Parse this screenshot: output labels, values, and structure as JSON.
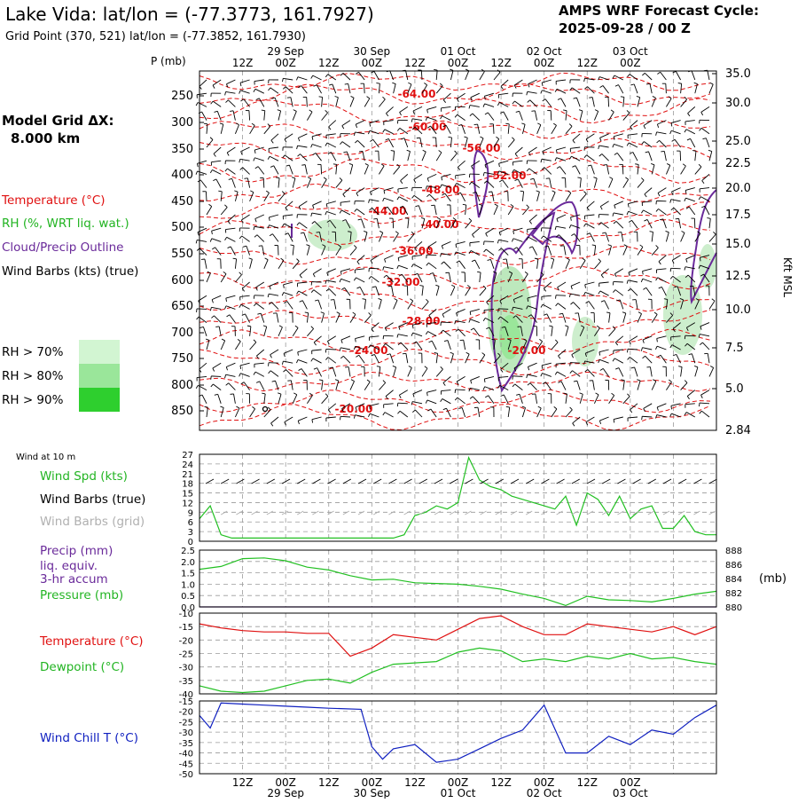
{
  "header": {
    "title": "Lake Vida:  lat/lon = (-77.3773, 161.7927)",
    "grid_point": "Grid Point (370, 521) lat/lon = (-77.3852, 161.7930)",
    "forecast_line1": "AMPS WRF Forecast Cycle:",
    "forecast_line2": "2025-09-28 / 00  Z"
  },
  "sidebar": {
    "model_grid_label": "Model Grid ΔX:",
    "model_grid_value": "8.000 km",
    "legend": [
      {
        "text": "Temperature (°C)",
        "color": "#e01010"
      },
      {
        "text": "RH (%, WRT liq. wat.)",
        "color": "#22b422"
      },
      {
        "text": "Cloud/Precip Outline",
        "color": "#6a2a9a"
      },
      {
        "text": "Wind Barbs (kts) (true)",
        "color": "#000000"
      }
    ],
    "rh_legend": [
      {
        "text": "RH > 70%",
        "color": "#d2f5d2"
      },
      {
        "text": "RH > 80%",
        "color": "#9ae69a"
      },
      {
        "text": "RH > 90%",
        "color": "#2ecf2e"
      }
    ]
  },
  "time_axis": {
    "hour_labels": [
      "12Z",
      "00Z",
      "12Z",
      "00Z",
      "12Z",
      "00Z",
      "12Z",
      "00Z",
      "12Z",
      "00Z"
    ],
    "top_date_labels": [
      "29 Sep",
      "30 Sep",
      "01 Oct",
      "02 Oct",
      "03 Oct"
    ],
    "bottom_date_labels": [
      "29 Sep",
      "30 Sep",
      "01 Oct",
      "02 Oct",
      "03 Oct"
    ]
  },
  "chart_data": [
    {
      "type": "heatmap",
      "title": "Vertical cross-section (time-height)",
      "pressure_axis_label": "P (mb)",
      "pressure_levels": [
        250,
        300,
        350,
        400,
        450,
        500,
        550,
        600,
        650,
        700,
        750,
        800,
        850
      ],
      "height_axis_label": "Kft MSL",
      "height_ticks": [
        "35.0",
        "30.0",
        "25.0",
        "22.5",
        "20.0",
        "17.5",
        "15.0",
        "12.5",
        "10.0",
        "7.5",
        "5.0",
        "2.84"
      ],
      "temperature_contours": [
        "-64.00",
        "-60.00",
        "-56.00",
        "-52.00",
        "-48.00",
        "-44.00",
        "-40.00",
        "-36.00",
        "-32.00",
        "-28.00",
        "-24.00",
        "-20.00",
        "-20.00"
      ],
      "hours": [
        -12,
        0,
        12,
        24,
        36,
        48,
        60,
        72,
        84,
        96,
        108,
        120
      ]
    },
    {
      "type": "line",
      "title": "Wind at 10 m",
      "legend": [
        "Wind Spd (kts)",
        "Wind Barbs (true)",
        "Wind Barbs (grid)"
      ],
      "ylim": [
        0,
        27
      ],
      "y_ticks": [
        "0",
        "3",
        "6",
        "9",
        "12",
        "15",
        "18",
        "21",
        "24",
        "27"
      ],
      "x_hours": [
        0,
        3,
        6,
        9,
        12,
        15,
        18,
        21,
        24,
        27,
        30,
        33,
        36,
        39,
        42,
        45,
        48,
        51,
        54,
        57,
        60,
        63,
        66,
        69,
        72,
        75,
        78,
        81,
        84,
        87,
        90,
        93,
        96,
        99,
        102,
        105,
        108,
        111,
        114,
        117,
        120,
        123,
        126,
        129,
        132,
        135,
        138,
        141,
        144
      ],
      "wind_speed_kts": [
        7,
        11,
        2,
        1,
        1,
        1,
        1,
        1,
        1,
        1,
        1,
        1,
        1,
        1,
        1,
        1,
        1,
        1,
        1,
        2,
        8,
        9,
        11,
        10,
        12,
        26,
        19,
        17,
        16,
        14,
        13,
        12,
        11,
        10,
        14,
        5,
        15,
        13,
        8,
        14,
        7,
        10,
        11,
        4,
        4,
        8,
        3,
        2,
        2
      ]
    },
    {
      "type": "line",
      "title": "Precip / Pressure",
      "legend": [
        "Precip (mm)",
        "liq. equiv.",
        "3-hr accum",
        "Pressure (mb)"
      ],
      "precip_ylim": [
        0,
        2.5
      ],
      "precip_ticks": [
        "0.0",
        "0.5",
        "1.0",
        "1.5",
        "2.0",
        "2.5"
      ],
      "pressure_ylim": [
        880,
        888
      ],
      "pressure_ticks": [
        "880",
        "882",
        "884",
        "886",
        "888"
      ],
      "pressure_axis_label": "(mb)",
      "x_hours": [
        0,
        6,
        12,
        18,
        24,
        30,
        36,
        42,
        48,
        54,
        60,
        66,
        72,
        78,
        84,
        90,
        96,
        102,
        108,
        114,
        120,
        126,
        132,
        138,
        144
      ],
      "pressure_mb": [
        885.3,
        885.7,
        886.8,
        886.9,
        886.5,
        885.6,
        885.2,
        884.4,
        883.8,
        883.9,
        883.4,
        883.3,
        883.2,
        882.9,
        882.5,
        881.8,
        881.2,
        880.2,
        881.5,
        881.0,
        880.9,
        880.7,
        881.2,
        881.8,
        882.2
      ],
      "precip_mm": [
        0,
        0,
        0,
        0,
        0,
        0,
        0,
        0,
        0,
        0,
        0,
        0,
        0,
        0,
        0,
        0,
        0,
        0,
        0,
        0,
        0,
        0,
        0,
        0,
        0
      ]
    },
    {
      "type": "line",
      "title": "Temperature / Dewpoint",
      "legend": [
        "Temperature (°C)",
        "Dewpoint (°C)"
      ],
      "ylim": [
        -40,
        -10
      ],
      "y_ticks": [
        "-10",
        "-15",
        "-20",
        "-25",
        "-30",
        "-35",
        "-40"
      ],
      "x_hours": [
        0,
        6,
        12,
        18,
        24,
        30,
        36,
        42,
        48,
        54,
        60,
        66,
        72,
        78,
        84,
        90,
        96,
        102,
        108,
        114,
        120,
        126,
        132,
        138,
        144
      ],
      "temperature_c": [
        -14,
        -15.5,
        -16.5,
        -17,
        -17,
        -17.5,
        -17.5,
        -26,
        -23,
        -18,
        -19,
        -20,
        -16,
        -12,
        -11,
        -15,
        -18,
        -18,
        -14,
        -15,
        -16,
        -17,
        -15,
        -18,
        -15
      ],
      "dewpoint_c": [
        -37,
        -39,
        -39.5,
        -39,
        -37,
        -35,
        -34.5,
        -36,
        -32,
        -29,
        -28.5,
        -28,
        -24.5,
        -23,
        -24,
        -28,
        -27,
        -28,
        -26,
        -27,
        -25,
        -27,
        -26.5,
        -28,
        -29
      ]
    },
    {
      "type": "line",
      "title": "Wind Chill",
      "legend": [
        "Wind Chill T (°C)"
      ],
      "ylim": [
        -50,
        -15
      ],
      "y_ticks": [
        "-15",
        "-20",
        "-25",
        "-30",
        "-35",
        "-40",
        "-45",
        "-50"
      ],
      "x_hours": [
        0,
        3,
        6,
        12,
        18,
        24,
        30,
        36,
        45,
        48,
        51,
        54,
        60,
        66,
        72,
        78,
        84,
        90,
        96,
        102,
        108,
        114,
        120,
        126,
        132,
        138,
        144
      ],
      "wind_chill_c": [
        -22,
        -28,
        -16,
        -16.5,
        -17,
        -17.5,
        -18,
        -18.5,
        -19,
        -37,
        -43,
        -38,
        -36,
        -44.5,
        -43,
        -38,
        -33,
        -29,
        -17,
        -40,
        -40,
        -32,
        -36,
        -29,
        -31,
        -23,
        -17
      ]
    }
  ]
}
